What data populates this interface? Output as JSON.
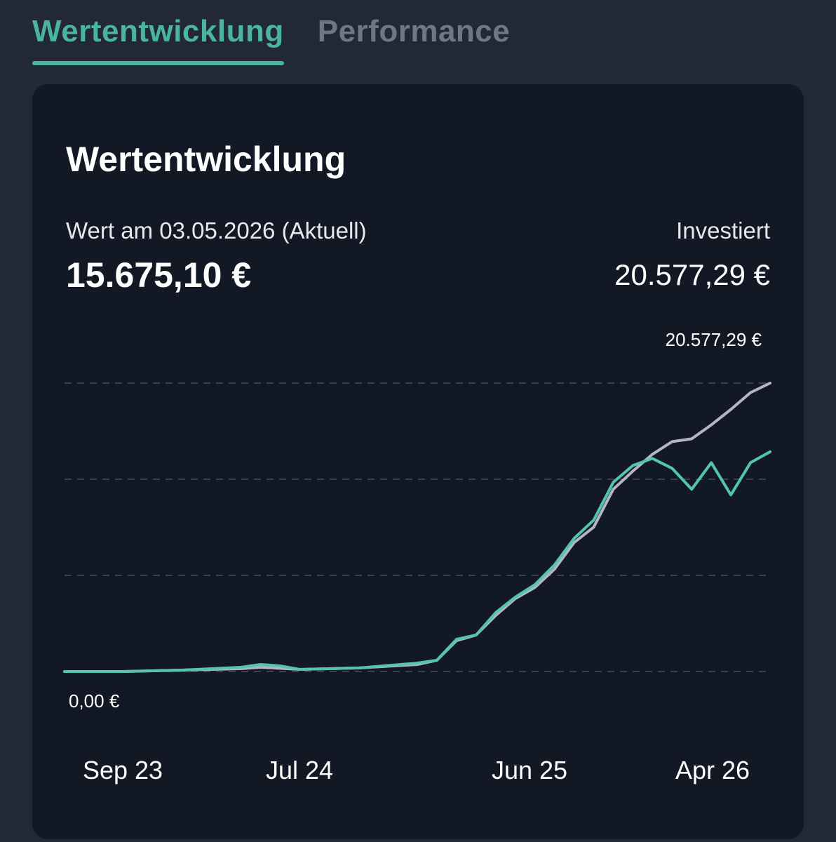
{
  "tabs": [
    {
      "label": "Wertentwicklung",
      "active": true
    },
    {
      "label": "Performance",
      "active": false
    }
  ],
  "card": {
    "title": "Wertentwicklung",
    "value_label": "Wert am 03.05.2026 (Aktuell)",
    "value_amount": "15.675,10 €",
    "invested_label": "Investiert",
    "invested_amount": "20.577,29 €"
  },
  "colors": {
    "accent": "#4bb3a3",
    "value_line": "#52c4b0",
    "invested_line": "#b3b5c0",
    "background": "#222834",
    "card": "#131825"
  },
  "chart_data": {
    "type": "line",
    "x_ticks": [
      "Sep 23",
      "Jul 24",
      "Jun 25",
      "Apr 26"
    ],
    "y_ticks": [
      "0,00 €",
      "20.577,29 €"
    ],
    "ylim": [
      0,
      20577.29
    ],
    "grid": true,
    "series": [
      {
        "key": "invested",
        "color": "#b3b5c0",
        "points": [
          [
            "2023-09",
            0
          ],
          [
            "2023-12",
            0
          ],
          [
            "2024-03",
            100
          ],
          [
            "2024-06",
            200
          ],
          [
            "2024-07",
            300
          ],
          [
            "2024-09",
            150
          ],
          [
            "2024-12",
            250
          ],
          [
            "2025-03",
            500
          ],
          [
            "2025-04",
            800
          ],
          [
            "2025-05",
            2200
          ],
          [
            "2025-06",
            2600
          ],
          [
            "2025-07",
            4000
          ],
          [
            "2025-08",
            5200
          ],
          [
            "2025-09",
            6000
          ],
          [
            "2025-10",
            7300
          ],
          [
            "2025-11",
            9200
          ],
          [
            "2025-12",
            10300
          ],
          [
            "2026-01",
            13000
          ],
          [
            "2026-02",
            14300
          ],
          [
            "2026-03",
            15500
          ],
          [
            "2026-04",
            16400
          ],
          [
            "2026-05",
            16600
          ],
          [
            "2026-06",
            17600
          ],
          [
            "2026-07",
            18700
          ],
          [
            "2026-08",
            19900
          ],
          [
            "2026-09",
            20577.29
          ]
        ]
      },
      {
        "key": "value",
        "color": "#52c4b0",
        "points": [
          [
            "2023-09",
            0
          ],
          [
            "2023-12",
            0
          ],
          [
            "2024-03",
            100
          ],
          [
            "2024-06",
            300
          ],
          [
            "2024-07",
            500
          ],
          [
            "2024-08",
            400
          ],
          [
            "2024-09",
            150
          ],
          [
            "2024-12",
            250
          ],
          [
            "2025-03",
            600
          ],
          [
            "2025-04",
            800
          ],
          [
            "2025-05",
            2300
          ],
          [
            "2025-06",
            2600
          ],
          [
            "2025-07",
            4200
          ],
          [
            "2025-08",
            5300
          ],
          [
            "2025-09",
            6200
          ],
          [
            "2025-10",
            7600
          ],
          [
            "2025-11",
            9500
          ],
          [
            "2025-12",
            10800
          ],
          [
            "2026-01",
            13500
          ],
          [
            "2026-02",
            14700
          ],
          [
            "2026-03",
            15200
          ],
          [
            "2026-04",
            14500
          ],
          [
            "2026-05",
            13000
          ],
          [
            "2026-06",
            14900
          ],
          [
            "2026-07",
            12600
          ],
          [
            "2026-08",
            14900
          ],
          [
            "2026-09",
            15675.1
          ]
        ]
      }
    ]
  }
}
